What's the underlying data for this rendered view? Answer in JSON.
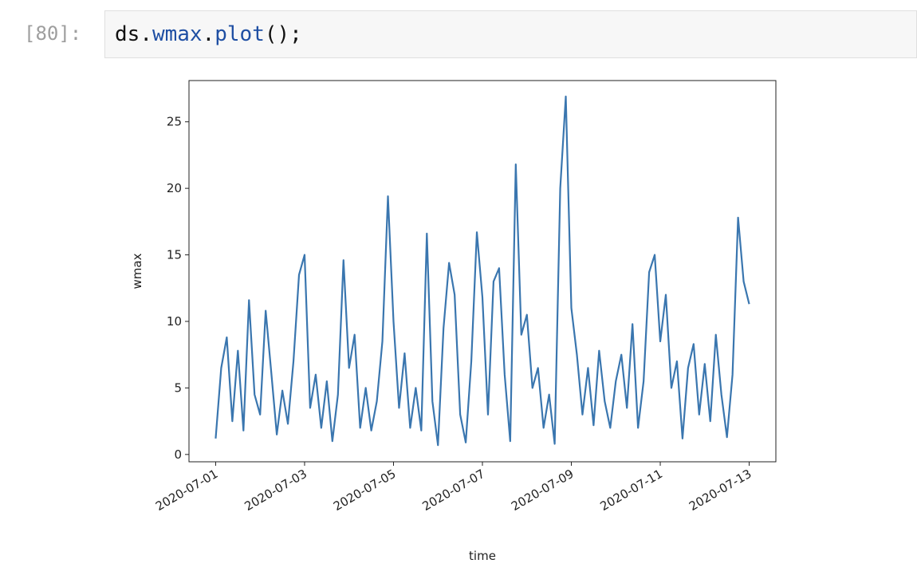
{
  "cell": {
    "prompt": "[80]:",
    "code_parts": [
      "ds",
      ".",
      "wmax",
      ".",
      "plot",
      "();"
    ]
  },
  "chart_data": {
    "type": "line",
    "xlabel": "time",
    "ylabel": "wmax",
    "x": [
      18444,
      18444.125,
      18444.25,
      18444.375,
      18444.5,
      18444.625,
      18444.75,
      18444.875,
      18445,
      18445.125,
      18445.25,
      18445.375,
      18445.5,
      18445.625,
      18445.75,
      18445.875,
      18446,
      18446.125,
      18446.25,
      18446.375,
      18446.5,
      18446.625,
      18446.75,
      18446.875,
      18447,
      18447.125,
      18447.25,
      18447.375,
      18447.5,
      18447.625,
      18447.75,
      18447.875,
      18448,
      18448.125,
      18448.25,
      18448.375,
      18448.5,
      18448.625,
      18448.75,
      18448.875,
      18449,
      18449.125,
      18449.25,
      18449.375,
      18449.5,
      18449.625,
      18449.75,
      18449.875,
      18450,
      18450.125,
      18450.25,
      18450.375,
      18450.5,
      18450.625,
      18450.75,
      18450.875,
      18451,
      18451.125,
      18451.25,
      18451.375,
      18451.5,
      18451.625,
      18451.75,
      18451.875,
      18452,
      18452.125,
      18452.25,
      18452.375,
      18452.5,
      18452.625,
      18452.75,
      18452.875,
      18453,
      18453.125,
      18453.25,
      18453.375,
      18453.5,
      18453.625,
      18453.75,
      18453.875,
      18454,
      18454.125,
      18454.25,
      18454.375,
      18454.5,
      18454.625,
      18454.75,
      18454.875,
      18455,
      18455.125,
      18455.25,
      18455.375,
      18455.5,
      18455.625,
      18455.75,
      18455.875,
      18456
    ],
    "series": [
      {
        "name": "wmax",
        "color": "#3a76af",
        "values": [
          1.2,
          6.5,
          8.8,
          2.5,
          7.8,
          1.8,
          11.6,
          4.5,
          3.0,
          10.8,
          6.2,
          1.5,
          4.8,
          2.3,
          7.0,
          13.5,
          15.0,
          3.5,
          6.0,
          2.0,
          5.5,
          1.0,
          4.5,
          14.6,
          6.5,
          9.0,
          2.0,
          5.0,
          1.8,
          4.0,
          8.5,
          19.4,
          10.0,
          3.5,
          7.6,
          2.0,
          5.0,
          1.8,
          16.6,
          4.0,
          0.7,
          9.5,
          14.4,
          12.0,
          3.0,
          0.9,
          7.0,
          16.7,
          11.8,
          3.0,
          13.0,
          14.0,
          6.0,
          1.0,
          21.8,
          9.0,
          10.5,
          5.0,
          6.5,
          2.0,
          4.5,
          0.8,
          20.0,
          26.9,
          11.0,
          7.5,
          3.0,
          6.5,
          2.2,
          7.8,
          4.0,
          2.0,
          5.5,
          7.5,
          3.5,
          9.8,
          2.0,
          5.5,
          13.7,
          15.0,
          8.5,
          12.0,
          5.0,
          7.0,
          1.2,
          6.5,
          8.3,
          3.0,
          6.8,
          2.5,
          9.0,
          4.5,
          1.3,
          6.0,
          17.8,
          13.0,
          11.3
        ]
      }
    ],
    "xlim": [
      18443.4,
      18456.6
    ],
    "xticks": [
      {
        "value": 18444,
        "label": "2020-07-01"
      },
      {
        "value": 18446,
        "label": "2020-07-03"
      },
      {
        "value": 18448,
        "label": "2020-07-05"
      },
      {
        "value": 18450,
        "label": "2020-07-07"
      },
      {
        "value": 18452,
        "label": "2020-07-09"
      },
      {
        "value": 18454,
        "label": "2020-07-11"
      },
      {
        "value": 18456,
        "label": "2020-07-13"
      }
    ],
    "ylim": [
      -0.55,
      28.1
    ],
    "yticks": [
      0,
      5,
      10,
      15,
      20,
      25
    ],
    "grid": false
  }
}
